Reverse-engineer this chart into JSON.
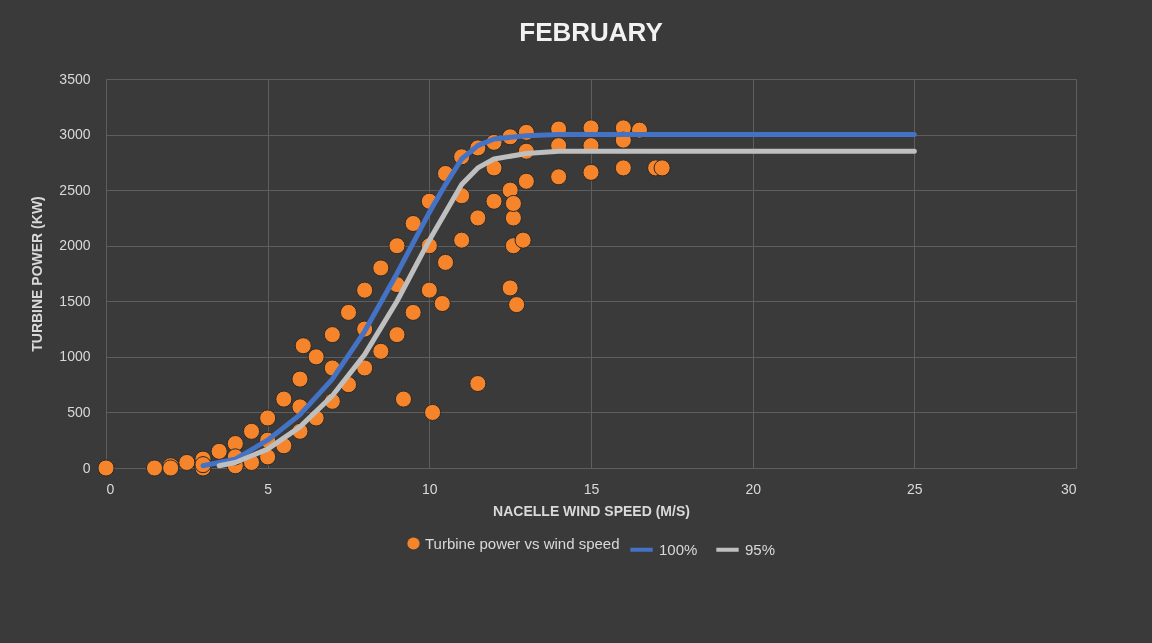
{
  "chart_data": {
    "type": "scatter",
    "title": "FEBRUARY",
    "xlabel": "NACELLE WIND SPEED (M/S)",
    "ylabel": "TURBINE POWER (KW)",
    "xlim": [
      0,
      30
    ],
    "xticks": [
      0,
      5,
      10,
      15,
      20,
      25,
      30
    ],
    "ylim": [
      0,
      3500
    ],
    "yticks": [
      0,
      500,
      1000,
      1500,
      2000,
      2500,
      3000,
      3500
    ],
    "grid": true,
    "legend": "bottom",
    "line_style": "solid",
    "series": [
      {
        "name": "Turbine power vs wind speed",
        "marker": "circle",
        "color": "#f5842a",
        "x": [
          0,
          1.5,
          2,
          2.5,
          3,
          3.5,
          4,
          4.5,
          5,
          5.5,
          6,
          6.5,
          7,
          7.5,
          8,
          8.5,
          9,
          9.5,
          10,
          10.5,
          11,
          11.5,
          12,
          12.5,
          13,
          14,
          15,
          16,
          16.5,
          2,
          3,
          4,
          4.5,
          5,
          5.5,
          6,
          6.5,
          7,
          7.5,
          8,
          8.5,
          9,
          9.5,
          10,
          10.5,
          11,
          11.5,
          12,
          12.5,
          13,
          14,
          15,
          16,
          17,
          17.2,
          3,
          4,
          5,
          6,
          7,
          8,
          9,
          10,
          11,
          12,
          13,
          14,
          15,
          16,
          6.1,
          9.2,
          10.1,
          11.5,
          10.4,
          12.5,
          12.7,
          12.6,
          12.9,
          12.6,
          12.6
        ],
        "values": [
          0,
          0,
          20,
          50,
          80,
          150,
          220,
          330,
          450,
          620,
          800,
          1000,
          1200,
          1400,
          1600,
          1800,
          2000,
          2200,
          2400,
          2650,
          2800,
          2880,
          2930,
          2980,
          3020,
          3050,
          3060,
          3060,
          3040,
          0,
          0,
          20,
          50,
          100,
          200,
          330,
          450,
          600,
          750,
          900,
          1050,
          1200,
          1400,
          1600,
          1850,
          2050,
          2250,
          2400,
          2500,
          2580,
          2620,
          2660,
          2700,
          2700,
          2700,
          30,
          100,
          250,
          550,
          900,
          1250,
          1650,
          2000,
          2450,
          2700,
          2850,
          2900,
          2900,
          2950,
          1100,
          620,
          500,
          760,
          1480,
          1620,
          1470,
          2000,
          2050,
          2250,
          2380
        ]
      },
      {
        "name": "100%",
        "type": "line",
        "marker": "none",
        "color": "#4472c4",
        "x": [
          3,
          4,
          5,
          6,
          7,
          8,
          9,
          10,
          10.5,
          11,
          11.5,
          12,
          13,
          14,
          25
        ],
        "values": [
          20,
          80,
          250,
          480,
          800,
          1230,
          1750,
          2300,
          2550,
          2780,
          2900,
          2960,
          2990,
          3000,
          3000
        ]
      },
      {
        "name": "95%",
        "type": "line",
        "marker": "none",
        "color": "#bfbfbf",
        "x": [
          3.5,
          4,
          5,
          6,
          7,
          8,
          9,
          10,
          11,
          11.5,
          12,
          13,
          14,
          25
        ],
        "values": [
          20,
          50,
          170,
          370,
          650,
          1020,
          1500,
          2050,
          2550,
          2700,
          2780,
          2830,
          2850,
          2850
        ]
      }
    ]
  }
}
